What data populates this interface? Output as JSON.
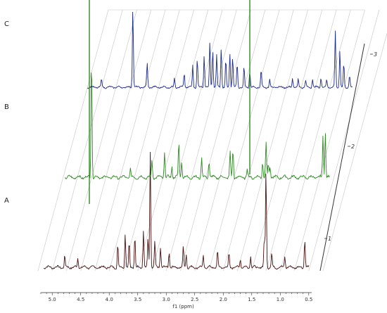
{
  "chart_data": {
    "type": "line",
    "title": "",
    "xlabel": "f1 (ppm)",
    "ylabel": "",
    "x_axis_reversed": true,
    "xlim": [
      5.2,
      0.3
    ],
    "xticks": [
      "5.0",
      "4.5",
      "4.0",
      "3.5",
      "3.0",
      "2.5",
      "2.0",
      "1.5",
      "1.0",
      "0.5"
    ],
    "stack_indices": [
      "1",
      "2",
      "3"
    ],
    "grid": true,
    "legend": "none",
    "series": [
      {
        "name": "A",
        "color": "#4a1010",
        "peaks_ppm": [
          4.78,
          4.55,
          3.85,
          3.72,
          3.65,
          3.55,
          3.4,
          3.32,
          3.28,
          3.2,
          3.1,
          2.95,
          2.7,
          2.65,
          2.35,
          2.1,
          1.9,
          1.7,
          1.52,
          1.28,
          1.25,
          1.15,
          0.92,
          0.57
        ],
        "relative_heights": [
          0.1,
          0.08,
          0.2,
          0.3,
          0.22,
          0.28,
          0.32,
          0.25,
          1.0,
          0.22,
          0.18,
          0.14,
          0.18,
          0.12,
          0.1,
          0.14,
          0.12,
          0.08,
          0.1,
          0.25,
          0.85,
          0.12,
          0.1,
          0.25
        ]
      },
      {
        "name": "B",
        "color": "#2f8a23",
        "peaks_ppm": [
          4.68,
          4.0,
          3.62,
          3.4,
          3.27,
          3.15,
          3.1,
          2.75,
          2.62,
          2.25,
          2.2,
          1.95,
          1.68,
          1.62,
          1.58,
          1.55,
          0.62,
          0.58
        ],
        "relative_heights": [
          0.9,
          0.06,
          0.12,
          0.18,
          0.08,
          0.25,
          0.12,
          0.14,
          0.12,
          0.18,
          0.2,
          0.06,
          0.12,
          0.25,
          0.1,
          0.08,
          0.3,
          0.33
        ]
      },
      {
        "name": "C",
        "color": "#1a2a8c",
        "peaks_ppm": [
          4.9,
          4.35,
          4.1,
          3.62,
          3.45,
          3.3,
          3.22,
          3.1,
          3.0,
          2.95,
          2.88,
          2.8,
          2.72,
          2.65,
          2.6,
          2.52,
          2.4,
          2.3,
          2.1,
          1.95,
          1.55,
          1.45,
          1.32,
          1.2,
          1.05,
          0.95,
          0.8,
          0.72,
          0.65,
          0.55,
          0.42,
          0.38
        ],
        "relative_heights": [
          0.1,
          1.0,
          0.3,
          0.12,
          0.18,
          0.28,
          0.35,
          0.4,
          0.55,
          0.48,
          0.4,
          0.5,
          0.35,
          0.42,
          0.38,
          0.3,
          0.25,
          0.2,
          0.22,
          0.1,
          0.12,
          0.1,
          0.08,
          0.1,
          0.12,
          0.1,
          0.7,
          0.45,
          0.3,
          0.15,
          0.42,
          0.38
        ]
      }
    ]
  }
}
